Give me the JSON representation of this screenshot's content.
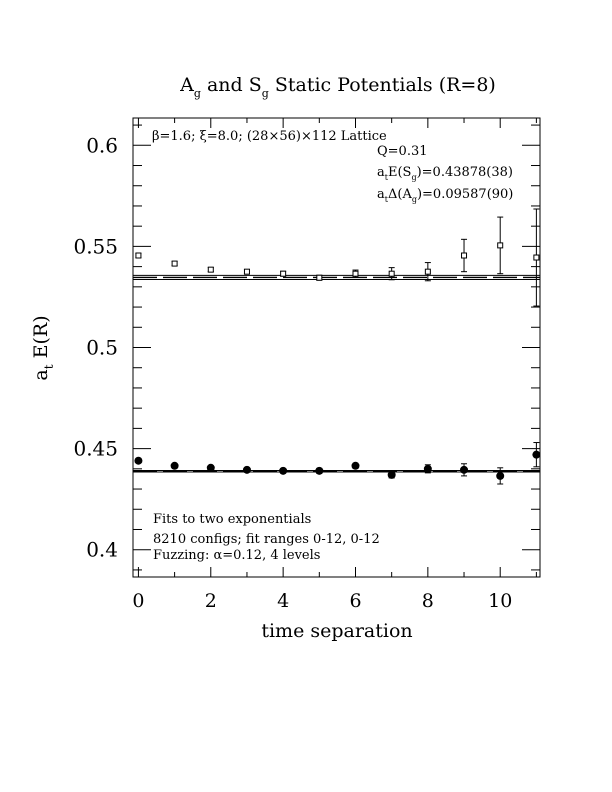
{
  "chart_data": {
    "type": "scatter",
    "title": {
      "text": "A and S Static Potentials (R=8)",
      "a_sub": "g",
      "s_sub": "g"
    },
    "xlabel": "time separation",
    "ylabel": {
      "main": "a",
      "sub": "t",
      "rest": " E(R)"
    },
    "xlim": [
      -0.15,
      11.1
    ],
    "ylim": [
      0.3865,
      0.6135
    ],
    "x_ticks": [
      0,
      2,
      4,
      6,
      8,
      10
    ],
    "y_ticks": [
      0.4,
      0.45,
      0.5,
      0.55,
      0.6
    ],
    "x_tick_labels": [
      "0",
      "2",
      "4",
      "6",
      "8",
      "10"
    ],
    "y_tick_labels": [
      "0.4",
      "0.45",
      "0.5",
      "0.55",
      "0.6"
    ],
    "x_minor_step": 1,
    "y_minor_step": 0.01,
    "grid": false,
    "annotations": {
      "lattice": "β=1.6; ξ=8.0; (28×56)×112 Lattice",
      "q": "Q=0.31",
      "es_prefix": "a",
      "es_sub1": "t",
      "es_mid": "E(S",
      "es_sub2": "g",
      "es_val": ")=0.43878(38)",
      "da_prefix": "a",
      "da_sub1": "t",
      "da_mid": "Δ(A",
      "da_sub2": "g",
      "da_val": ")=0.09587(90)",
      "fit_line1": "Fits to two exponentials",
      "fit_line2": "8210 configs; fit ranges 0-12, 0-12",
      "fit_line3": "Fuzzing: α=0.12, 4 levels"
    },
    "series": [
      {
        "marker": "open-square",
        "x": [
          0,
          1,
          2,
          3,
          4,
          5,
          6,
          7,
          8,
          9,
          10,
          11
        ],
        "y": [
          0.5455,
          0.5415,
          0.5385,
          0.5375,
          0.5365,
          0.5345,
          0.5365,
          0.5365,
          0.5375,
          0.5455,
          0.5505,
          0.5445
        ],
        "err": [
          0.001,
          0.001,
          0.001,
          0.001,
          0.0012,
          0.0012,
          0.0018,
          0.003,
          0.0045,
          0.008,
          0.014,
          0.024
        ],
        "fit": 0.53465,
        "fit_err": 0.001
      },
      {
        "marker": "filled-circle",
        "x": [
          0,
          1,
          2,
          3,
          4,
          5,
          6,
          7,
          8,
          9,
          10,
          11
        ],
        "y": [
          0.444,
          0.4415,
          0.4405,
          0.4395,
          0.439,
          0.439,
          0.4415,
          0.437,
          0.44,
          0.4395,
          0.4365,
          0.447
        ],
        "err": [
          0.0008,
          0.0008,
          0.001,
          0.001,
          0.001,
          0.0012,
          0.0012,
          0.0015,
          0.002,
          0.003,
          0.004,
          0.006
        ],
        "fit": 0.43878,
        "fit_err": 0.00038
      }
    ]
  },
  "colors": {
    "ink": "#000000",
    "background": "#ffffff"
  }
}
